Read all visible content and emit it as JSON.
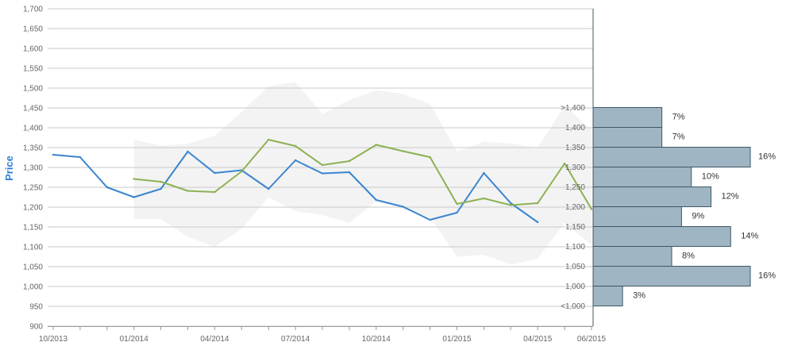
{
  "chart_data": {
    "type": "line",
    "ylabel": "Price",
    "ylim": [
      900,
      1700
    ],
    "y_ticks": [
      "900",
      "950",
      "1,000",
      "1,050",
      "1,100",
      "1,150",
      "1,200",
      "1,250",
      "1,300",
      "1,350",
      "1,400",
      "1,450",
      "1,500",
      "1,550",
      "1,600",
      "1,650",
      "1,700"
    ],
    "x_tick_labels": [
      "10/2013",
      "01/2014",
      "04/2014",
      "07/2014",
      "10/2014",
      "01/2015",
      "04/2015",
      "06/2015"
    ],
    "grid": true,
    "colors": {
      "series_blue": "#3a85d0",
      "series_green": "#8db153",
      "band": "#f3f3f3",
      "histogram": "#9fb5c3",
      "histogram_border": "#3d5866",
      "grid": "#c8c8c8"
    },
    "series": [
      {
        "x": [
          "10/2013",
          "11/2013",
          "12/2013",
          "01/2014",
          "02/2014",
          "03/2014",
          "04/2014",
          "05/2014",
          "06/2014",
          "07/2014",
          "08/2014",
          "09/2014",
          "10/2014",
          "11/2014",
          "12/2014",
          "01/2015",
          "02/2015",
          "03/2015",
          "04/2015"
        ],
        "values": [
          1332,
          1326,
          1250,
          1225,
          1246,
          1340,
          1286,
          1293,
          1246,
          1318,
          1285,
          1288,
          1218,
          1201,
          1168,
          1186,
          1286,
          1210,
          1162
        ]
      },
      {
        "x": [
          "01/2014",
          "02/2014",
          "03/2014",
          "04/2014",
          "05/2014",
          "06/2014",
          "07/2014",
          "08/2014",
          "09/2014",
          "10/2014",
          "11/2014",
          "12/2014",
          "01/2015",
          "02/2015",
          "03/2015",
          "04/2015",
          "05/2015",
          "06/2015"
        ],
        "values": [
          1271,
          1264,
          1241,
          1238,
          1290,
          1370,
          1354,
          1306,
          1316,
          1357,
          1341,
          1326,
          1208,
          1222,
          1205,
          1210,
          1310,
          1195
        ]
      }
    ],
    "band": {
      "x": [
        "01/2014",
        "02/2014",
        "03/2014",
        "04/2014",
        "05/2014",
        "06/2014",
        "07/2014",
        "08/2014",
        "09/2014",
        "10/2014",
        "11/2014",
        "12/2014",
        "01/2015",
        "02/2015",
        "03/2015",
        "04/2015",
        "05/2015",
        "06/2015"
      ],
      "upper": [
        1370,
        1355,
        1360,
        1380,
        1440,
        1505,
        1515,
        1435,
        1470,
        1495,
        1485,
        1460,
        1340,
        1365,
        1360,
        1350,
        1455,
        1395
      ],
      "lower": [
        1170,
        1170,
        1125,
        1100,
        1145,
        1225,
        1190,
        1180,
        1160,
        1215,
        1195,
        1175,
        1075,
        1080,
        1055,
        1070,
        1160,
        1105
      ]
    },
    "histogram": {
      "categories": [
        ">1,400",
        "1,400",
        "1,350",
        "1,300",
        "1,250",
        "1,200",
        "1,150",
        "1,100",
        "1,050",
        "1,000",
        "<1,000"
      ],
      "values": [
        7,
        7,
        16,
        10,
        12,
        9,
        14,
        8,
        16,
        3
      ],
      "labels": [
        "7%",
        "7%",
        "16%",
        "10%",
        "12%",
        "9%",
        "14%",
        "8%",
        "16%",
        "3%"
      ]
    }
  }
}
